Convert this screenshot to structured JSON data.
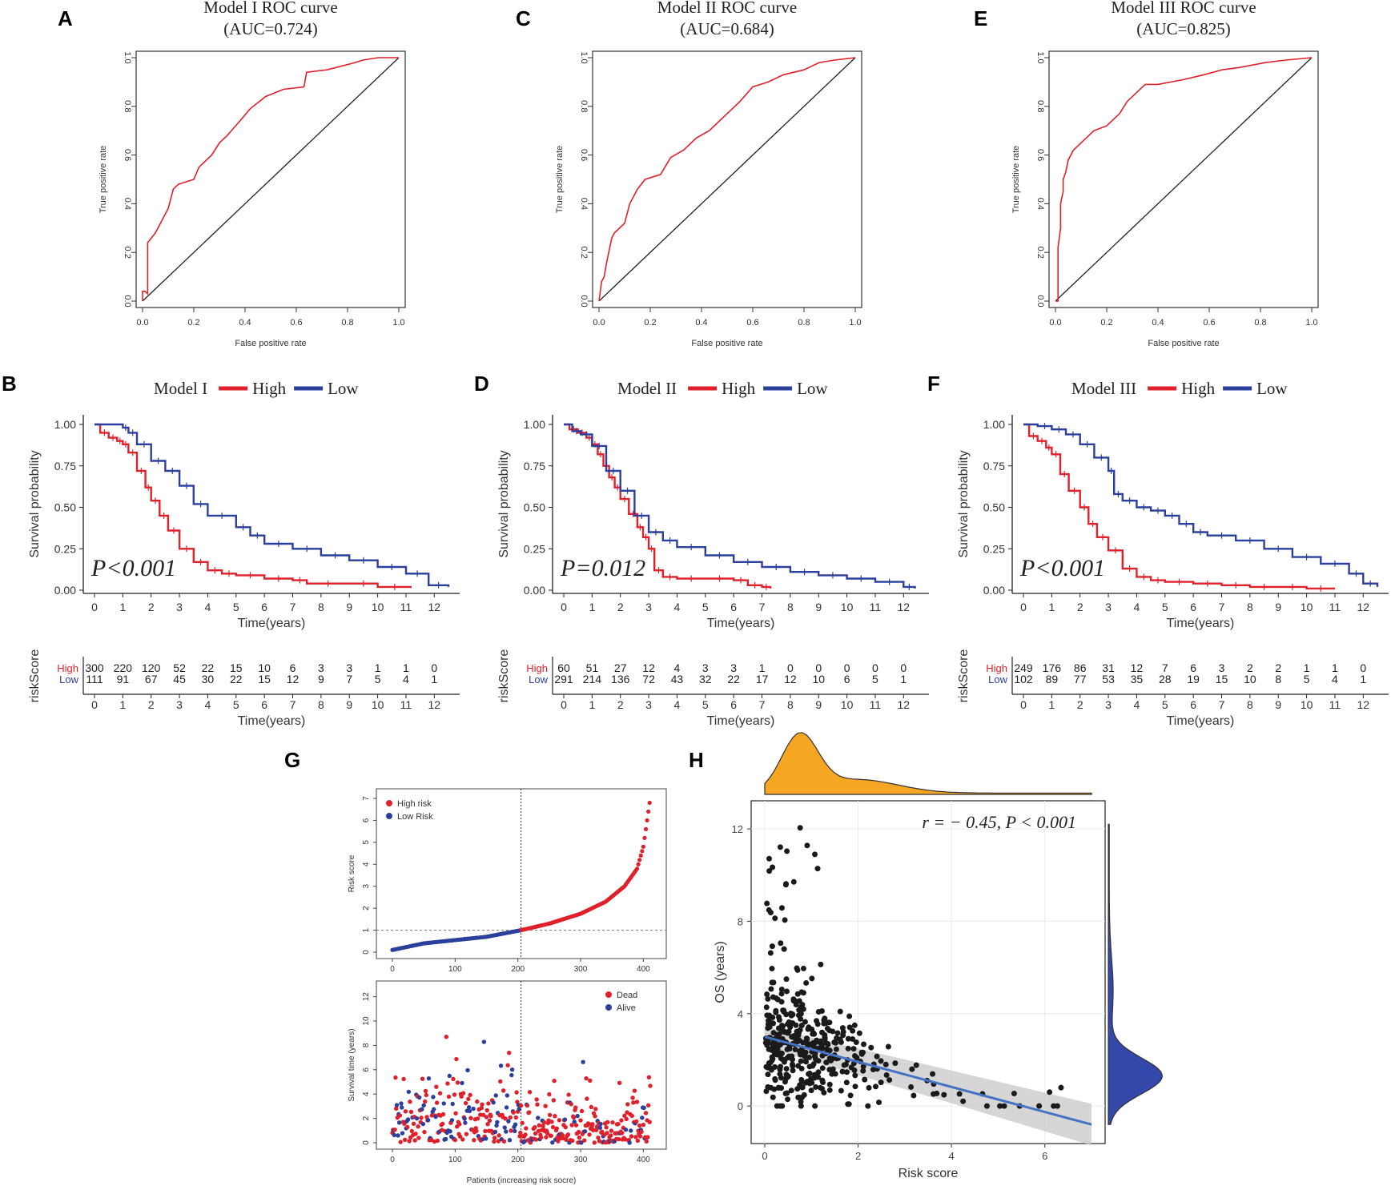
{
  "figure": {
    "panel_labels": [
      "A",
      "B",
      "C",
      "D",
      "E",
      "F",
      "G",
      "H"
    ],
    "colors": {
      "high": "#e0202a",
      "low": "#2b3f9c",
      "risk_line": "#4472c4",
      "density_top": "#f5a623",
      "density_right": "#3348a8",
      "points": "#1a1a1a"
    }
  },
  "chart_data": [
    {
      "id": "A",
      "type": "line",
      "subtype": "roc",
      "title": "Model I ROC curve",
      "subtitle": "(AUC=0.724)",
      "xlabel": "False positive rate",
      "ylabel": "True positive rate",
      "xlim": [
        0,
        1
      ],
      "ylim": [
        0,
        1
      ],
      "ticks": [
        "0.0",
        "0.2",
        "0.4",
        "0.6",
        "0.8",
        "1.0"
      ],
      "series": [
        {
          "name": "ROC",
          "x": [
            0,
            0,
            0.01,
            0.02,
            0.02,
            0.05,
            0.08,
            0.1,
            0.12,
            0.14,
            0.2,
            0.22,
            0.27,
            0.3,
            0.33,
            0.38,
            0.42,
            0.48,
            0.55,
            0.63,
            0.64,
            0.72,
            0.83,
            0.86,
            0.92,
            1.0
          ],
          "y": [
            0,
            0.04,
            0.04,
            0.03,
            0.24,
            0.28,
            0.34,
            0.38,
            0.46,
            0.48,
            0.5,
            0.55,
            0.6,
            0.65,
            0.68,
            0.74,
            0.79,
            0.84,
            0.87,
            0.88,
            0.94,
            0.95,
            0.98,
            0.99,
            1.0,
            1.0
          ]
        }
      ]
    },
    {
      "id": "C",
      "type": "line",
      "subtype": "roc",
      "title": "Model II ROC curve",
      "subtitle": "(AUC=0.684)",
      "xlabel": "False positive rate",
      "ylabel": "True positive rate",
      "xlim": [
        0,
        1
      ],
      "ylim": [
        0,
        1
      ],
      "ticks": [
        "0.0",
        "0.2",
        "0.4",
        "0.6",
        "0.8",
        "1.0"
      ],
      "series": [
        {
          "name": "ROC",
          "x": [
            0,
            0.01,
            0.02,
            0.03,
            0.05,
            0.06,
            0.1,
            0.12,
            0.14,
            0.15,
            0.18,
            0.24,
            0.28,
            0.33,
            0.38,
            0.43,
            0.5,
            0.55,
            0.6,
            0.66,
            0.72,
            0.8,
            0.86,
            0.92,
            1.0
          ],
          "y": [
            0,
            0.08,
            0.1,
            0.16,
            0.26,
            0.28,
            0.32,
            0.4,
            0.44,
            0.46,
            0.5,
            0.52,
            0.59,
            0.62,
            0.67,
            0.7,
            0.77,
            0.82,
            0.88,
            0.9,
            0.93,
            0.95,
            0.98,
            0.99,
            1.0
          ]
        }
      ]
    },
    {
      "id": "E",
      "type": "line",
      "subtype": "roc",
      "title": "Model III ROC curve",
      "subtitle": "(AUC=0.825)",
      "xlabel": "False positive rate",
      "ylabel": "True positive rate",
      "xlim": [
        0,
        1
      ],
      "ylim": [
        0,
        1
      ],
      "ticks": [
        "0.0",
        "0.2",
        "0.4",
        "0.6",
        "0.8",
        "1.0"
      ],
      "series": [
        {
          "name": "ROC",
          "x": [
            0,
            0.01,
            0.01,
            0.02,
            0.02,
            0.03,
            0.03,
            0.04,
            0.05,
            0.07,
            0.1,
            0.15,
            0.2,
            0.25,
            0.28,
            0.32,
            0.35,
            0.4,
            0.5,
            0.58,
            0.65,
            0.72,
            0.82,
            0.9,
            1.0
          ],
          "y": [
            0,
            0.0,
            0.22,
            0.3,
            0.4,
            0.45,
            0.5,
            0.53,
            0.58,
            0.62,
            0.65,
            0.7,
            0.72,
            0.77,
            0.82,
            0.86,
            0.89,
            0.89,
            0.91,
            0.93,
            0.95,
            0.96,
            0.98,
            0.99,
            1.0
          ]
        }
      ]
    },
    {
      "id": "B",
      "type": "line",
      "subtype": "kaplan-meier",
      "legend_title": "Model I",
      "legend": [
        "High",
        "Low"
      ],
      "pvalue": "P<0.001",
      "xlabel": "Time(years)",
      "ylabel": "Survival probability",
      "xlim": [
        0,
        12.5
      ],
      "ylim": [
        0,
        1
      ],
      "xticks": [
        "0",
        "1",
        "2",
        "3",
        "4",
        "5",
        "6",
        "7",
        "8",
        "9",
        "10",
        "11",
        "12"
      ],
      "yticks": [
        "0.00",
        "0.25",
        "0.50",
        "0.75",
        "1.00"
      ],
      "series": [
        {
          "name": "High",
          "x": [
            0,
            0.2,
            0.5,
            0.8,
            1.0,
            1.2,
            1.5,
            1.8,
            2.0,
            2.3,
            2.6,
            3.0,
            3.5,
            4.0,
            4.5,
            5.0,
            6.0,
            7.0,
            7.5,
            9.0,
            10.0,
            11.2
          ],
          "y": [
            1.0,
            0.95,
            0.92,
            0.9,
            0.88,
            0.83,
            0.72,
            0.62,
            0.54,
            0.45,
            0.36,
            0.25,
            0.17,
            0.12,
            0.1,
            0.09,
            0.07,
            0.06,
            0.04,
            0.04,
            0.02,
            0.02
          ]
        },
        {
          "name": "Low",
          "x": [
            0,
            1.0,
            1.2,
            1.5,
            2.0,
            2.5,
            3.0,
            3.5,
            4.0,
            5.0,
            5.5,
            6.0,
            7.0,
            8.0,
            9.0,
            10.0,
            11.0,
            11.8,
            12.5
          ],
          "y": [
            1.0,
            0.98,
            0.95,
            0.88,
            0.78,
            0.72,
            0.63,
            0.52,
            0.45,
            0.38,
            0.33,
            0.28,
            0.25,
            0.21,
            0.18,
            0.14,
            0.1,
            0.03,
            0.02
          ]
        }
      ],
      "risk_table": {
        "label": "riskScore",
        "rows": [
          {
            "group": "High",
            "counts": [
              300,
              220,
              120,
              52,
              22,
              15,
              10,
              6,
              3,
              3,
              1,
              1,
              0
            ]
          },
          {
            "group": "Low",
            "counts": [
              111,
              91,
              67,
              45,
              30,
              22,
              15,
              12,
              9,
              7,
              5,
              4,
              1
            ]
          }
        ]
      }
    },
    {
      "id": "D",
      "type": "line",
      "subtype": "kaplan-meier",
      "legend_title": "Model II",
      "legend": [
        "High",
        "Low"
      ],
      "pvalue": "P=0.012",
      "xlabel": "Time(years)",
      "ylabel": "Survival probability",
      "xlim": [
        0,
        12.5
      ],
      "ylim": [
        0,
        1
      ],
      "xticks": [
        "0",
        "1",
        "2",
        "3",
        "4",
        "5",
        "6",
        "7",
        "8",
        "9",
        "10",
        "11",
        "12"
      ],
      "yticks": [
        "0.00",
        "0.25",
        "0.50",
        "0.75",
        "1.00"
      ],
      "series": [
        {
          "name": "High",
          "x": [
            0,
            0.2,
            0.5,
            0.8,
            1.0,
            1.2,
            1.4,
            1.6,
            1.8,
            2.0,
            2.3,
            2.6,
            2.8,
            3.0,
            3.2,
            3.5,
            4.0,
            5.0,
            6.0,
            6.5,
            7.0,
            7.3
          ],
          "y": [
            1.0,
            0.97,
            0.95,
            0.92,
            0.88,
            0.82,
            0.75,
            0.68,
            0.62,
            0.55,
            0.46,
            0.38,
            0.32,
            0.25,
            0.12,
            0.08,
            0.07,
            0.07,
            0.06,
            0.03,
            0.02,
            0.01
          ]
        },
        {
          "name": "Low",
          "x": [
            0,
            0.3,
            0.6,
            1.0,
            1.5,
            2.0,
            2.5,
            3.0,
            3.5,
            4.0,
            5.0,
            6.0,
            7.0,
            8.0,
            9.0,
            10.0,
            11.0,
            12.0,
            12.4
          ],
          "y": [
            1.0,
            0.96,
            0.94,
            0.87,
            0.72,
            0.6,
            0.45,
            0.35,
            0.3,
            0.26,
            0.21,
            0.17,
            0.14,
            0.11,
            0.09,
            0.07,
            0.05,
            0.02,
            0.01
          ]
        }
      ],
      "risk_table": {
        "label": "riskScore",
        "rows": [
          {
            "group": "High",
            "counts": [
              60,
              51,
              27,
              12,
              4,
              3,
              3,
              1,
              0,
              0,
              0,
              0,
              0
            ]
          },
          {
            "group": "Low",
            "counts": [
              291,
              214,
              136,
              72,
              43,
              32,
              22,
              17,
              12,
              10,
              6,
              5,
              1
            ]
          }
        ]
      }
    },
    {
      "id": "F",
      "type": "line",
      "subtype": "kaplan-meier",
      "legend_title": "Model III",
      "legend": [
        "High",
        "Low"
      ],
      "pvalue": "P<0.001",
      "xlabel": "Time(years)",
      "ylabel": "Survival probability",
      "xlim": [
        0,
        12.5
      ],
      "ylim": [
        0,
        1
      ],
      "xticks": [
        "0",
        "1",
        "2",
        "3",
        "4",
        "5",
        "6",
        "7",
        "8",
        "9",
        "10",
        "11",
        "12"
      ],
      "yticks": [
        "0.00",
        "0.25",
        "0.50",
        "0.75",
        "1.00"
      ],
      "series": [
        {
          "name": "High",
          "x": [
            0,
            0.2,
            0.5,
            0.8,
            1.0,
            1.3,
            1.6,
            2.0,
            2.3,
            2.6,
            3.0,
            3.5,
            4.0,
            4.5,
            5.0,
            6.0,
            7.0,
            8.0,
            9.0,
            10.0,
            11.0
          ],
          "y": [
            1.0,
            0.93,
            0.9,
            0.86,
            0.82,
            0.7,
            0.6,
            0.5,
            0.4,
            0.32,
            0.24,
            0.13,
            0.08,
            0.06,
            0.05,
            0.04,
            0.03,
            0.02,
            0.02,
            0.01,
            0.01
          ]
        },
        {
          "name": "Low",
          "x": [
            0,
            0.5,
            1.0,
            1.5,
            2.0,
            2.5,
            3.0,
            3.2,
            3.5,
            4.0,
            4.5,
            5.0,
            5.5,
            6.0,
            6.5,
            7.5,
            8.5,
            9.5,
            10.5,
            11.5,
            12.0,
            12.5
          ],
          "y": [
            1.0,
            0.99,
            0.97,
            0.94,
            0.88,
            0.8,
            0.72,
            0.58,
            0.54,
            0.5,
            0.48,
            0.45,
            0.4,
            0.35,
            0.33,
            0.3,
            0.25,
            0.2,
            0.16,
            0.1,
            0.04,
            0.02
          ]
        }
      ],
      "risk_table": {
        "label": "riskScore",
        "rows": [
          {
            "group": "High",
            "counts": [
              249,
              176,
              86,
              31,
              12,
              7,
              6,
              3,
              2,
              2,
              1,
              1,
              0
            ]
          },
          {
            "group": "Low",
            "counts": [
              102,
              89,
              77,
              53,
              35,
              28,
              19,
              15,
              10,
              8,
              5,
              4,
              1
            ]
          }
        ]
      }
    },
    {
      "id": "G",
      "type": "scatter",
      "subtype": "risk-score-distribution",
      "top": {
        "ylabel": "Risk score",
        "xlim": [
          0,
          411
        ],
        "ylim": [
          0,
          7
        ],
        "cutoff_index": 205,
        "cutoff_score": 1.0,
        "legend": [
          "High risk",
          "Low Risk"
        ],
        "xticks": [
          "0",
          "100",
          "200",
          "300",
          "400"
        ],
        "yticks": [
          "0",
          "1",
          "2",
          "3",
          "4",
          "5",
          "6",
          "7"
        ],
        "curve_x": [
          0,
          50,
          100,
          150,
          205,
          250,
          300,
          340,
          370,
          390,
          400,
          405,
          411
        ],
        "curve_y": [
          0.1,
          0.4,
          0.55,
          0.7,
          1.0,
          1.3,
          1.75,
          2.3,
          3.0,
          3.8,
          4.8,
          5.8,
          7.0
        ]
      },
      "bottom": {
        "ylabel": "Survival time (years)",
        "xlabel": "Patients (increasing risk socre)",
        "xlim": [
          0,
          411
        ],
        "ylim": [
          0,
          12.5
        ],
        "legend": [
          "Dead",
          "Alive"
        ],
        "xticks": [
          "0",
          "100",
          "200",
          "300",
          "400"
        ],
        "yticks": [
          "0",
          "2",
          "4",
          "6",
          "8",
          "10",
          "12"
        ]
      }
    },
    {
      "id": "H",
      "type": "scatter",
      "subtype": "correlation",
      "annotation": "r = − 0.45, P < 0.001",
      "xlabel": "Risk score",
      "ylabel": "OS (years)",
      "xlim": [
        0,
        7
      ],
      "ylim": [
        -1,
        12.8
      ],
      "xticks": [
        "0",
        "2",
        "4",
        "6"
      ],
      "yticks": [
        "0",
        "4",
        "8",
        "12"
      ],
      "fit": {
        "x": [
          0,
          7
        ],
        "y": [
          3.0,
          -0.8
        ],
        "ci_low_end": -1.7,
        "ci_high_end": 0.1
      }
    }
  ]
}
